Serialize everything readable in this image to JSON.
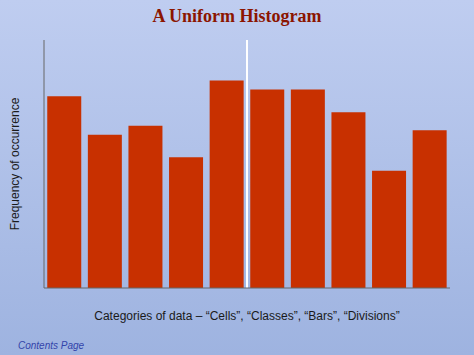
{
  "chart_data": {
    "type": "bar",
    "title": "A Uniform Histogram",
    "x_label": "Categories of data – “Cells”, “Classes”, “Bars”, “Divisions”",
    "y_label": "Frequency of occurrence",
    "categories": [
      null,
      null,
      null,
      null,
      null,
      null,
      null,
      null,
      null,
      null
    ],
    "values": [
      8.5,
      6.8,
      7.2,
      5.8,
      9.2,
      8.8,
      8.8,
      7.8,
      5.2,
      7.0
    ],
    "color": "#C83000",
    "ylim": [
      0,
      11
    ],
    "tick_labels": false,
    "grid": false,
    "vlines": [
      {
        "x": 4.5,
        "color": "white"
      }
    ],
    "annotations": [
      {
        "text": "Contents Page"
      }
    ]
  }
}
